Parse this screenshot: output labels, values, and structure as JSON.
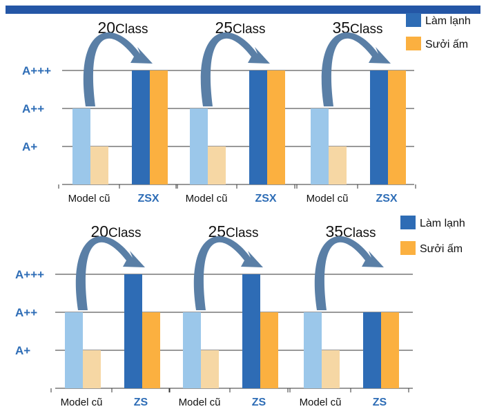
{
  "colors": {
    "top_bar": "#2456a6",
    "cooling_new": "#2e6cb5",
    "heating_new": "#fbb040",
    "cooling_old": "#9bc7ea",
    "heating_old": "#f6d7a4",
    "arrow": "#5a7fa6",
    "grid": "#333333",
    "level_label": "#2e6db6"
  },
  "chart_data": [
    {
      "type": "bar",
      "y_levels": [
        "A+",
        "A++",
        "A+++"
      ],
      "legend": {
        "placement": "top-right",
        "items": [
          "Làm lạnh",
          "Sưởi ấm"
        ]
      },
      "groups": [
        {
          "class_number": "20",
          "class_word": "Class",
          "bars": [
            {
              "label": "Model cũ",
              "kind": "old",
              "Làm lạnh": "A++",
              "Sưởi ấm": "A+"
            },
            {
              "label": "ZSX",
              "kind": "new",
              "Làm lạnh": "A+++",
              "Sưởi ấm": "A+++"
            }
          ]
        },
        {
          "class_number": "25",
          "class_word": "Class",
          "bars": [
            {
              "label": "Model cũ",
              "kind": "old",
              "Làm lạnh": "A++",
              "Sưởi ấm": "A+"
            },
            {
              "label": "ZSX",
              "kind": "new",
              "Làm lạnh": "A+++",
              "Sưởi ấm": "A+++"
            }
          ]
        },
        {
          "class_number": "35",
          "class_word": "Class",
          "bars": [
            {
              "label": "Model cũ",
              "kind": "old",
              "Làm lạnh": "A++",
              "Sưởi ấm": "A+"
            },
            {
              "label": "ZSX",
              "kind": "new",
              "Làm lạnh": "A+++",
              "Sưởi ấm": "A+++"
            }
          ]
        }
      ]
    },
    {
      "type": "bar",
      "y_levels": [
        "A+",
        "A++",
        "A+++"
      ],
      "legend": {
        "placement": "top-right",
        "items": [
          "Làm lạnh",
          "Sưởi ấm"
        ]
      },
      "groups": [
        {
          "class_number": "20",
          "class_word": "Class",
          "bars": [
            {
              "label": "Model cũ",
              "kind": "old",
              "Làm lạnh": "A++",
              "Sưởi ấm": "A+"
            },
            {
              "label": "ZS",
              "kind": "new",
              "Làm lạnh": "A+++",
              "Sưởi ấm": "A++"
            }
          ]
        },
        {
          "class_number": "25",
          "class_word": "Class",
          "bars": [
            {
              "label": "Model cũ",
              "kind": "old",
              "Làm lạnh": "A++",
              "Sưởi ấm": "A+"
            },
            {
              "label": "ZS",
              "kind": "new",
              "Làm lạnh": "A+++",
              "Sưởi ấm": "A++"
            }
          ]
        },
        {
          "class_number": "35",
          "class_word": "Class",
          "bars": [
            {
              "label": "Model cũ",
              "kind": "old",
              "Làm lạnh": "A++",
              "Sưởi ấm": "A+"
            },
            {
              "label": "ZS",
              "kind": "new",
              "Làm lạnh": "A++",
              "Sưởi ấm": "A++"
            }
          ]
        }
      ]
    }
  ]
}
